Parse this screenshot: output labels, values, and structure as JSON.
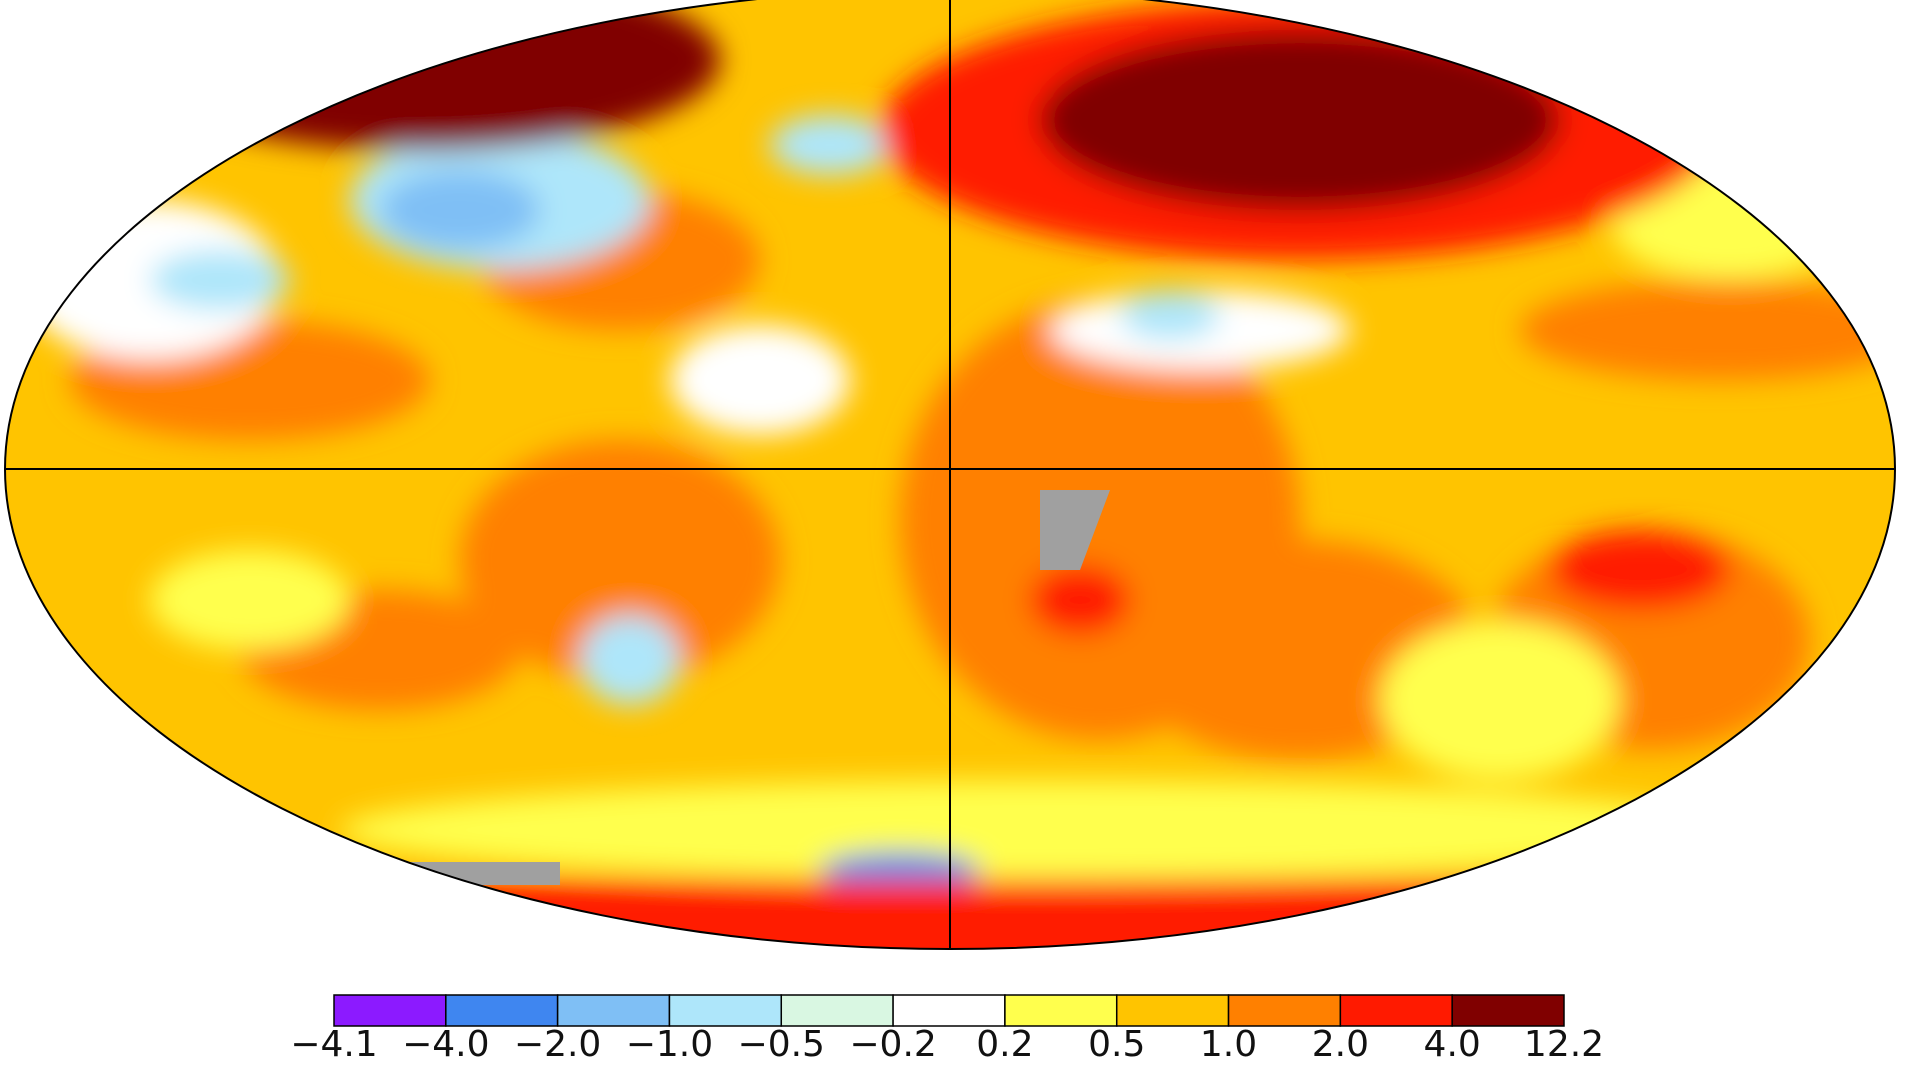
{
  "map": {
    "legend": {
      "bounds": [
        {
          "value": -4.1,
          "label": "−4.1"
        },
        {
          "value": -4.0,
          "label": "−4.0"
        },
        {
          "value": -2.0,
          "label": "−2.0"
        },
        {
          "value": -1.0,
          "label": "−1.0"
        },
        {
          "value": -0.5,
          "label": "−0.5"
        },
        {
          "value": -0.2,
          "label": "−0.2"
        },
        {
          "value": 0.2,
          "label": "0.2"
        },
        {
          "value": 0.5,
          "label": "0.5"
        },
        {
          "value": 1.0,
          "label": "1.0"
        },
        {
          "value": 2.0,
          "label": "2.0"
        },
        {
          "value": 4.0,
          "label": "4.0"
        },
        {
          "value": 12.2,
          "label": "12.2"
        }
      ],
      "colors": [
        "#8c1aff",
        "#3f86f0",
        "#7fbff5",
        "#aee6fa",
        "#d9f7e2",
        "#ffffff",
        "#ffff4d",
        "#ffc400",
        "#ff8000",
        "#ff1a00",
        "#800000"
      ]
    }
  }
}
